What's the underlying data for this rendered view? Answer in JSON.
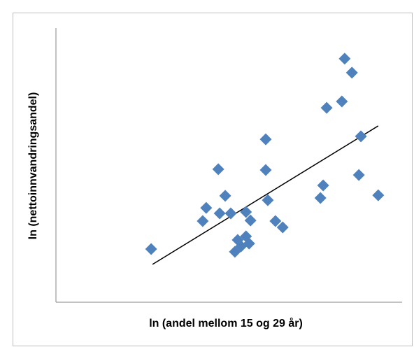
{
  "chart_data": {
    "type": "scatter",
    "xlabel": "ln (andel mellom 15 og 29 år)",
    "ylabel": "ln (nettoinnvandringsandel)",
    "xlim": [
      0,
      100
    ],
    "ylim": [
      0,
      100
    ],
    "color": "#4f81bd",
    "x": [
      27.5,
      42.4,
      43.4,
      46.9,
      47.3,
      48.9,
      50.5,
      51.7,
      52.5,
      53.5,
      54.9,
      54.9,
      55.8,
      56.2,
      60.6,
      60.6,
      61.2,
      63.4,
      65.5,
      76.4,
      77.2,
      78.2,
      82.6,
      83.4,
      85.5,
      88.1,
      87.5,
      93.1
    ],
    "values": [
      19.4,
      29.6,
      34.4,
      48.5,
      32.4,
      38.8,
      32.4,
      18.4,
      22.7,
      20.4,
      32.9,
      24.0,
      21.4,
      29.8,
      59.4,
      48.2,
      37.2,
      29.6,
      27.3,
      38.0,
      42.6,
      70.9,
      73.2,
      88.8,
      83.7,
      60.5,
      46.4,
      39.0
    ],
    "trendline": {
      "x": [
        27.9,
        93.1
      ],
      "y": [
        13.8,
        64.3
      ],
      "color": "#000000"
    }
  }
}
